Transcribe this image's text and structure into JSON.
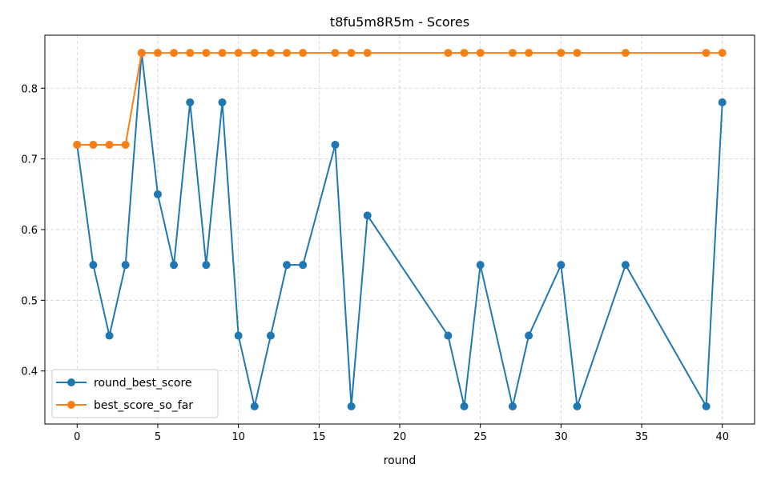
{
  "chart_data": {
    "type": "line",
    "title": "t8fu5m8R5m - Scores",
    "xlabel": "round",
    "ylabel": "",
    "xlim": [
      -2,
      42
    ],
    "ylim": [
      0.325,
      0.875
    ],
    "xticks": [
      0,
      5,
      10,
      15,
      20,
      25,
      30,
      35,
      40
    ],
    "yticks": [
      0.4,
      0.5,
      0.6,
      0.7,
      0.8
    ],
    "grid": true,
    "legend_position": "lower-left",
    "series": [
      {
        "name": "round_best_score",
        "color": "#1f77b4",
        "points": [
          [
            0,
            0.72
          ],
          [
            1,
            0.55
          ],
          [
            2,
            0.45
          ],
          [
            3,
            0.55
          ],
          [
            4,
            0.85
          ],
          [
            5,
            0.65
          ],
          [
            6,
            0.55
          ],
          [
            7,
            0.78
          ],
          [
            8,
            0.55
          ],
          [
            9,
            0.78
          ],
          [
            10,
            0.45
          ],
          [
            11,
            0.35
          ],
          [
            12,
            0.45
          ],
          [
            13,
            0.55
          ],
          [
            14,
            0.55
          ],
          [
            16,
            0.72
          ],
          [
            17,
            0.35
          ],
          [
            18,
            0.62
          ],
          [
            23,
            0.45
          ],
          [
            24,
            0.35
          ],
          [
            25,
            0.55
          ],
          [
            27,
            0.35
          ],
          [
            28,
            0.45
          ],
          [
            30,
            0.55
          ],
          [
            31,
            0.35
          ],
          [
            34,
            0.55
          ],
          [
            39,
            0.35
          ],
          [
            40,
            0.78
          ]
        ]
      },
      {
        "name": "best_score_so_far",
        "color": "#ff7f0e",
        "points": [
          [
            0,
            0.72
          ],
          [
            1,
            0.72
          ],
          [
            2,
            0.72
          ],
          [
            3,
            0.72
          ],
          [
            4,
            0.85
          ],
          [
            5,
            0.85
          ],
          [
            6,
            0.85
          ],
          [
            7,
            0.85
          ],
          [
            8,
            0.85
          ],
          [
            9,
            0.85
          ],
          [
            10,
            0.85
          ],
          [
            11,
            0.85
          ],
          [
            12,
            0.85
          ],
          [
            13,
            0.85
          ],
          [
            14,
            0.85
          ],
          [
            16,
            0.85
          ],
          [
            17,
            0.85
          ],
          [
            18,
            0.85
          ],
          [
            23,
            0.85
          ],
          [
            24,
            0.85
          ],
          [
            25,
            0.85
          ],
          [
            27,
            0.85
          ],
          [
            28,
            0.85
          ],
          [
            30,
            0.85
          ],
          [
            31,
            0.85
          ],
          [
            34,
            0.85
          ],
          [
            39,
            0.85
          ],
          [
            40,
            0.85
          ]
        ]
      }
    ]
  }
}
